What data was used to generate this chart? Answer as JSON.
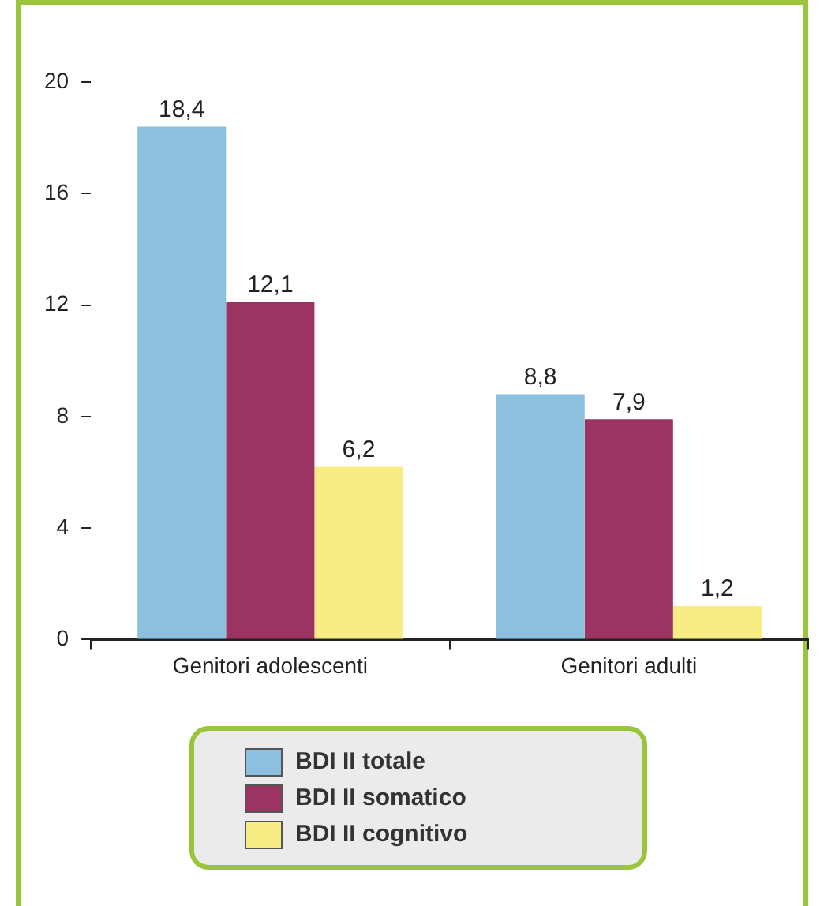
{
  "chart_data": {
    "type": "bar",
    "categories": [
      "Genitori adolescenti",
      "Genitori adulti"
    ],
    "series": [
      {
        "name": "BDI II totale",
        "color": "#8dbfdf",
        "values": [
          18.4,
          8.8
        ],
        "value_labels": [
          "18,4",
          "8,8"
        ]
      },
      {
        "name": "BDI II somatico",
        "color": "#9b3462",
        "values": [
          12.1,
          7.9
        ],
        "value_labels": [
          "12,1",
          "7,9"
        ]
      },
      {
        "name": "BDI II cognitivo",
        "color": "#f7ed84",
        "values": [
          6.2,
          1.2
        ],
        "value_labels": [
          "6,2",
          "1,2"
        ]
      }
    ],
    "ylim": [
      0,
      20
    ],
    "yticks": [
      0,
      4,
      8,
      12,
      16,
      20
    ],
    "grid": false,
    "legend": "bottom"
  }
}
